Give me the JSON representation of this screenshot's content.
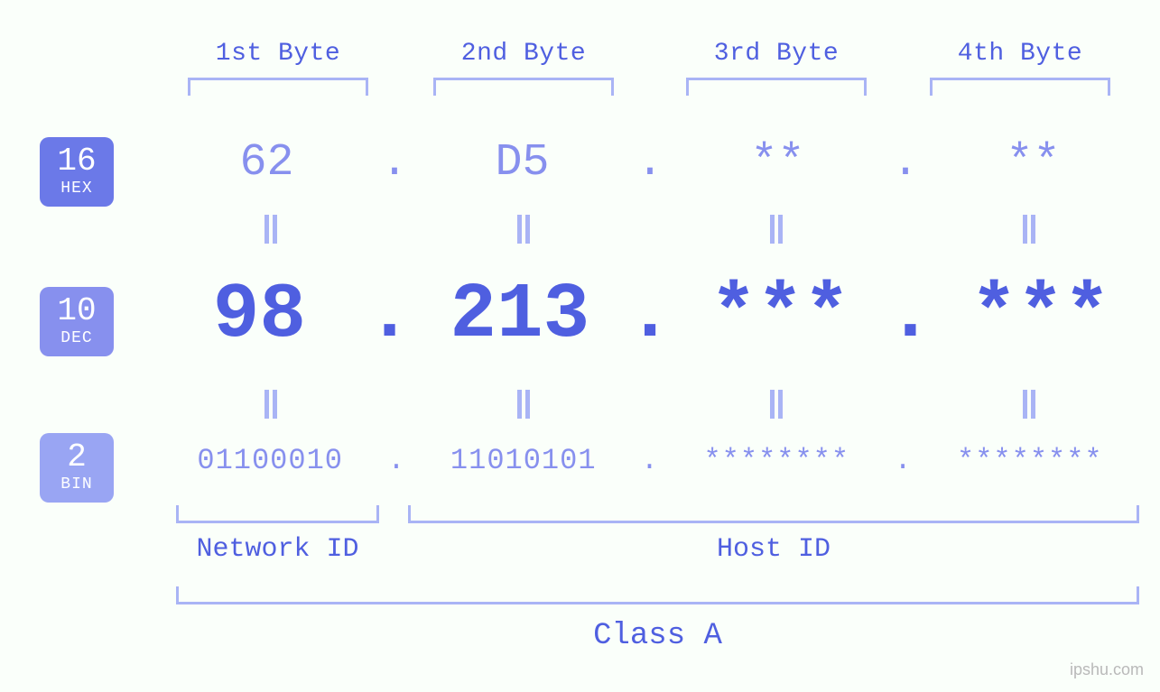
{
  "colors": {
    "background": "#fafffa",
    "primary_text": "#4f5fe0",
    "muted_text": "#8790ee",
    "bracket": "#a9b4f5",
    "badge_hex": "#6b79e8",
    "badge_dec": "#8790ee",
    "badge_bin": "#99a5f3",
    "watermark": "#b9b9b9"
  },
  "typography": {
    "font_family": "Courier New, monospace",
    "byte_header_fontsize": 28,
    "hex_fontsize": 50,
    "dec_fontsize": 86,
    "bin_fontsize": 32,
    "bottom_label_fontsize": 30,
    "class_label_fontsize": 34,
    "badge_num_fontsize": 36,
    "badge_sub_fontsize": 18
  },
  "byte_headers": [
    "1st Byte",
    "2nd Byte",
    "3rd Byte",
    "4th Byte"
  ],
  "badges": {
    "hex": {
      "num": "16",
      "sub": "HEX"
    },
    "dec": {
      "num": "10",
      "sub": "DEC"
    },
    "bin": {
      "num": "2",
      "sub": "BIN"
    }
  },
  "hex": [
    "62",
    "D5",
    "**",
    "**"
  ],
  "dec": [
    "98",
    "213",
    "***",
    "***"
  ],
  "bin": [
    "01100010",
    "11010101",
    "********",
    "********"
  ],
  "dot": ".",
  "bottom": {
    "network": "Network ID",
    "host": "Host ID",
    "class": "Class A"
  },
  "watermark": "ipshu.com"
}
